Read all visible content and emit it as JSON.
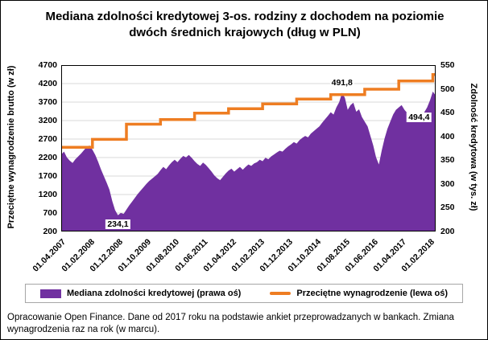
{
  "title": "Mediana zdolności kredytowej 3-os. rodziny z dochodem na poziomie dwóch średnich krajowych (dług w PLN)",
  "footer": "Opracowanie Open Finance. Dane od 2017 roku na podstawie ankiet przeprowadzanych w bankach.  Zmiana wynagrodzenia raz na rok (w marcu).",
  "legend": {
    "items": [
      {
        "label": "Mediana zdolności kredytowej (prawa oś)",
        "swatch": "area",
        "color": "#7030A0"
      },
      {
        "label": "Przeciętne wynagrodzenie (lewa oś)",
        "swatch": "line",
        "color": "#EE7D22"
      }
    ]
  },
  "chart_data": {
    "type": "area",
    "title": "Mediana zdolności kredytowej 3-os. rodziny z dochodem na poziomie dwóch średnich krajowych (dług w PLN)",
    "grid": "horizontal",
    "grid_color": "#D9D9D9",
    "legend_position": "bottom",
    "x_start_month": "2007-04",
    "x_tick_every": 10,
    "x_tick_labels": [
      "01.04.2007",
      "01.02.2008",
      "01.12.2008",
      "01.10.2009",
      "01.08.2010",
      "01.06.2011",
      "01.04.2012",
      "01.02.2013",
      "01.12.2013",
      "01.10.2014",
      "01.08.2015",
      "01.06.2016",
      "01.04.2017",
      "01.02.2018"
    ],
    "left_axis": {
      "label": "Przeciętne wynagrodzenie brutto (w zł)",
      "min": 200,
      "max": 4700,
      "step": 500,
      "ticks": [
        200,
        700,
        1200,
        1700,
        2200,
        2700,
        3200,
        3700,
        4200,
        4700
      ]
    },
    "right_axis": {
      "label": "Zdolność kredytowa (w tys. zł)",
      "min": 200,
      "max": 550,
      "step": 50,
      "ticks": [
        200,
        250,
        300,
        350,
        400,
        450,
        500,
        550
      ]
    },
    "series": [
      {
        "name": "Mediana zdolności kredytowej (prawa oś)",
        "axis": "right",
        "type": "area",
        "color": "#7030A0",
        "values": [
          362,
          368,
          356,
          349,
          344,
          352,
          358,
          364,
          371,
          378,
          381,
          372,
          361,
          347,
          331,
          317,
          303,
          288,
          264,
          245,
          234.1,
          239,
          237,
          246,
          255,
          263,
          271,
          279,
          286,
          293,
          300,
          306,
          311,
          316,
          321,
          329,
          336,
          331,
          339,
          346,
          351,
          346,
          353,
          359,
          356,
          361,
          355,
          348,
          342,
          338,
          345,
          340,
          333,
          326,
          318,
          312,
          308,
          315,
          322,
          328,
          332,
          326,
          331,
          336,
          330,
          336,
          341,
          338,
          343,
          346,
          351,
          348,
          355,
          352,
          358,
          362,
          366,
          370,
          368,
          374,
          379,
          383,
          388,
          385,
          392,
          397,
          401,
          398,
          406,
          411,
          416,
          421,
          429,
          436,
          443,
          451,
          446,
          461,
          472,
          491.8,
          481,
          456,
          466,
          471,
          452,
          457,
          441,
          431,
          421,
          401,
          381,
          356,
          341,
          371,
          396,
          416,
          431,
          446,
          456,
          461,
          466,
          456,
          449,
          441,
          436,
          443,
          439,
          446,
          451,
          461,
          476,
          494.4,
          486
        ]
      },
      {
        "name": "Przeciętne wynagrodzenie (lewa oś)",
        "axis": "left",
        "type": "step-line",
        "color": "#EE7D22",
        "steps": [
          {
            "from": "2007-04",
            "value": 2477
          },
          {
            "from": "2008-03",
            "value": 2691
          },
          {
            "from": "2009-03",
            "value": 3103
          },
          {
            "from": "2010-03",
            "value": 3225
          },
          {
            "from": "2011-03",
            "value": 3400
          },
          {
            "from": "2012-03",
            "value": 3522
          },
          {
            "from": "2013-03",
            "value": 3650
          },
          {
            "from": "2014-03",
            "value": 3783
          },
          {
            "from": "2015-03",
            "value": 3900
          },
          {
            "from": "2016-03",
            "value": 4047
          },
          {
            "from": "2017-03",
            "value": 4272
          },
          {
            "from": "2018-03",
            "value": 4443
          }
        ]
      }
    ],
    "annotations": [
      {
        "text": "234,1",
        "month": "2008-12",
        "value": 234.1,
        "placement": "below"
      },
      {
        "text": "491,8",
        "month": "2015-07",
        "value": 491.8,
        "placement": "above"
      },
      {
        "text": "494,4",
        "month": "2018-03",
        "value": 494.4,
        "placement": "end"
      }
    ]
  }
}
